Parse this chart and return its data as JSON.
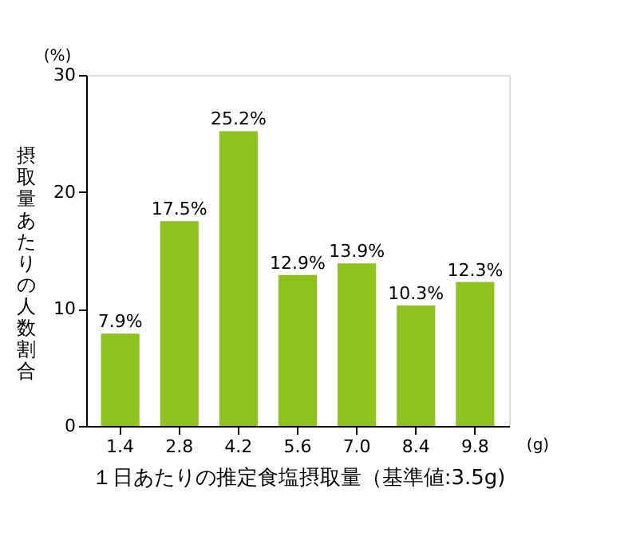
{
  "chart_data": {
    "type": "bar",
    "categories": [
      "1.4",
      "2.8",
      "4.2",
      "5.6",
      "7.0",
      "8.4",
      "9.8"
    ],
    "values": [
      7.9,
      17.5,
      25.2,
      12.9,
      13.9,
      10.3,
      12.3
    ],
    "value_labels": [
      "7.9%",
      "17.5%",
      "25.2%",
      "12.9%",
      "13.9%",
      "10.3%",
      "12.3%"
    ],
    "color": "#8dc21f",
    "xlabel": "１日あたりの推定食塩摂取量（基準値:3.5g)",
    "ylabel": "摂取量あたりの人数割合",
    "annotations": [
      "(%)",
      "(g)"
    ],
    "ylim": [
      0,
      30
    ],
    "yticks": [
      0,
      10,
      20,
      30
    ],
    "grid": false
  }
}
